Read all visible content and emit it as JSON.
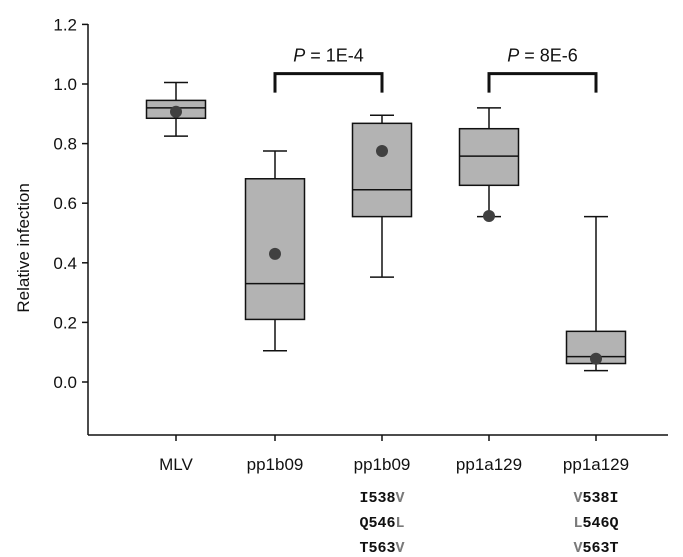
{
  "chart_data": {
    "type": "box",
    "ylabel": "Relative infection",
    "ylim": [
      -0.18,
      1.2
    ],
    "yticks": [
      "0.0",
      "0.2",
      "0.4",
      "0.6",
      "0.8",
      "1.0",
      "1.2"
    ],
    "categories": [
      "MLV",
      "pp1b09",
      "pp1b09",
      "pp1a129",
      "pp1a129"
    ],
    "boxes": [
      {
        "label": "MLV",
        "whisker_low": 0.825,
        "q1": 0.885,
        "median": 0.92,
        "q3": 0.945,
        "whisker_high": 1.005,
        "mean": 0.907
      },
      {
        "label": "pp1b09",
        "whisker_low": 0.105,
        "q1": 0.21,
        "median": 0.33,
        "q3": 0.682,
        "whisker_high": 0.775,
        "mean": 0.43
      },
      {
        "label": "pp1b09",
        "whisker_low": 0.352,
        "q1": 0.555,
        "median": 0.645,
        "q3": 0.868,
        "whisker_high": 0.895,
        "mean": 0.775
      },
      {
        "label": "pp1a129",
        "whisker_low": 0.555,
        "q1": 0.66,
        "median": 0.758,
        "q3": 0.85,
        "whisker_high": 0.92,
        "mean": 0.557
      },
      {
        "label": "pp1a129",
        "whisker_low": 0.038,
        "q1": 0.062,
        "median": 0.085,
        "q3": 0.17,
        "whisker_high": 0.555,
        "mean": 0.078
      }
    ],
    "mutations": [
      [],
      [],
      [
        {
          "from": "I",
          "pos": "538",
          "to": "V"
        },
        {
          "from": "Q",
          "pos": "546",
          "to": "L"
        },
        {
          "from": "T",
          "pos": "563",
          "to": "V"
        }
      ],
      [],
      [
        {
          "from": "V",
          "pos": "538",
          "to": "I"
        },
        {
          "from": "L",
          "pos": "546",
          "to": "Q"
        },
        {
          "from": "V",
          "pos": "563",
          "to": "T"
        }
      ]
    ],
    "annotations": [
      {
        "between": [
          1,
          2
        ],
        "p_label": "P",
        "p_value": " = 1E-4",
        "y": 1.035
      },
      {
        "between": [
          3,
          4
        ],
        "p_label": "P",
        "p_value": " = 8E-6",
        "y": 1.035
      }
    ],
    "colors": {
      "box_fill": "#b3b3b3",
      "stroke": "#111111",
      "mean_dot": "#404040",
      "mutation_gray": "#7a7a7a"
    }
  }
}
